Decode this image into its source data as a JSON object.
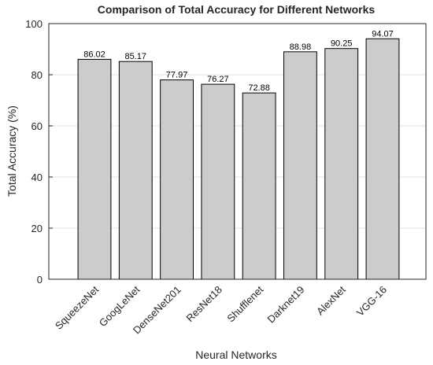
{
  "chart_data": {
    "type": "bar",
    "title": "Comparison of Total Accuracy for Different Networks",
    "x_label": "Neural Networks",
    "y_label": "Total Accuracy (%)",
    "categories": [
      "SqueezeNet",
      "GoogLeNet",
      "DenseNet201",
      "ResNet18",
      "Shufflenet",
      "Darknet19",
      "AlexNet",
      "VGG-16"
    ],
    "values": [
      86.02,
      85.17,
      77.97,
      76.27,
      72.88,
      88.98,
      90.25,
      94.07
    ],
    "color": "#cccccc",
    "ylim": [
      0,
      100
    ],
    "yticks": [
      0,
      20,
      40,
      60,
      80,
      100
    ],
    "grid": true
  }
}
